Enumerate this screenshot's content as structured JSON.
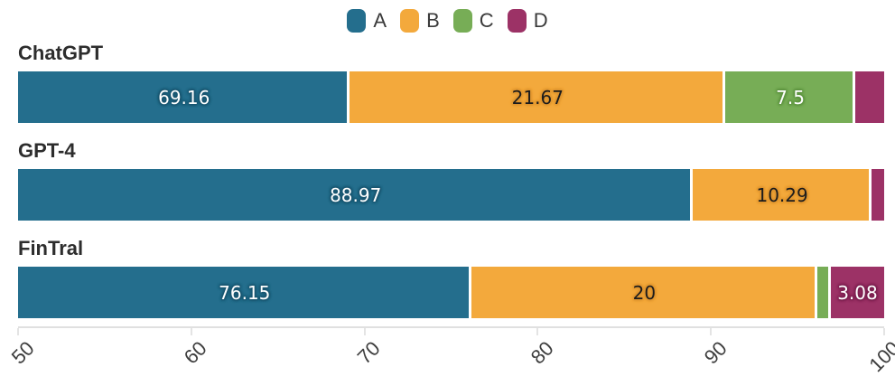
{
  "chart_data": {
    "type": "stacked_bar_horizontal",
    "title": "",
    "categories": [
      "ChatGPT",
      "GPT-4",
      "FinTral"
    ],
    "series": [
      {
        "name": "A",
        "color": "#246E8D",
        "label_color": "#ffffff",
        "halo_color": "#1A5670",
        "values": [
          69.16,
          88.97,
          76.15
        ],
        "labels": [
          "69.16",
          "88.97",
          "76.15"
        ]
      },
      {
        "name": "B",
        "color": "#F3A93C",
        "label_color": "#1c1c1c",
        "halo_color": "#DE9530",
        "values": [
          21.67,
          10.29,
          20
        ],
        "labels": [
          "21.67",
          "10.29",
          "20"
        ]
      },
      {
        "name": "C",
        "color": "#77AD56",
        "label_color": "#ffffff",
        "halo_color": "#5E9441",
        "values": [
          7.5,
          0,
          0.77
        ],
        "labels": [
          "7.5",
          "",
          ""
        ]
      },
      {
        "name": "D",
        "color": "#9C3266",
        "label_color": "#ffffff",
        "halo_color": "#7C2150",
        "values": [
          1.67,
          0.74,
          3.08
        ],
        "labels": [
          "",
          "",
          "3.08"
        ]
      }
    ],
    "xlim": [
      50,
      100
    ],
    "xticks": [
      "50",
      "60",
      "70",
      "80",
      "90",
      "100"
    ],
    "grid": false,
    "legend_position": "top-center",
    "layout": {
      "category_label_tops": [
        48,
        156,
        264
      ],
      "bar_tops": [
        79,
        187,
        295
      ]
    }
  }
}
